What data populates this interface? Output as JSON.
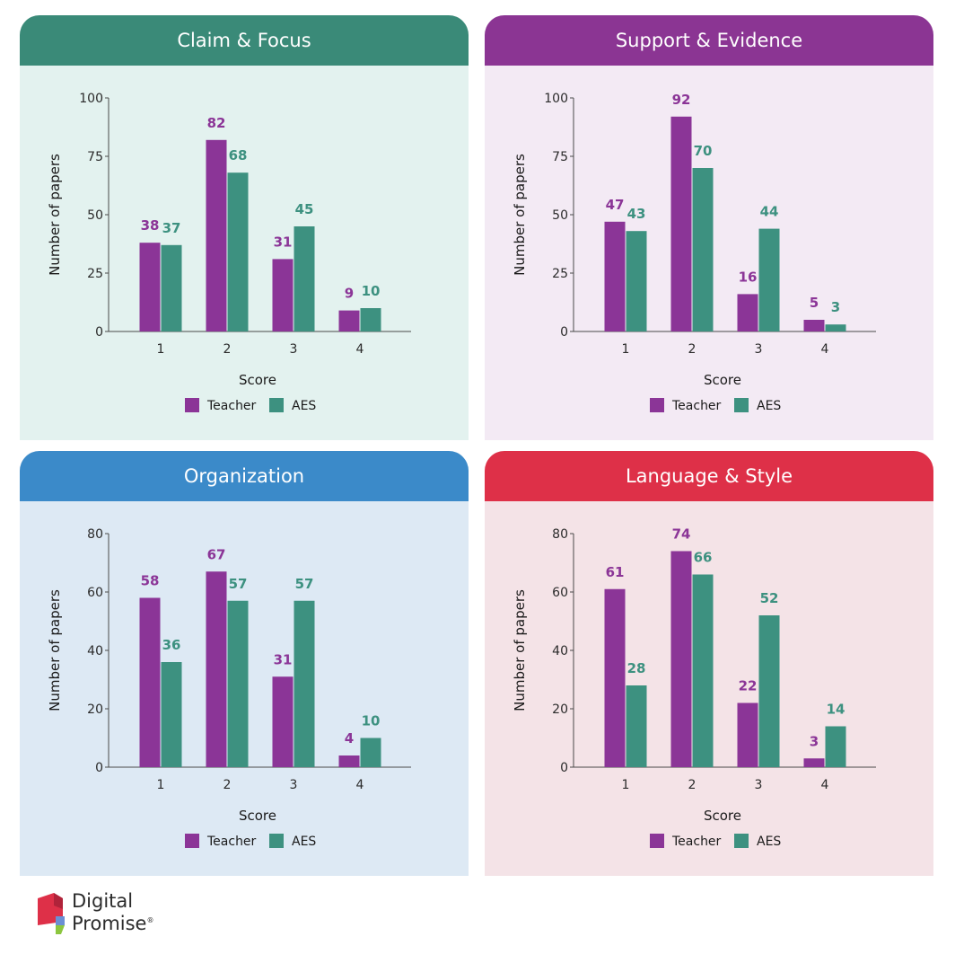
{
  "colors": {
    "teacher": "#8b3597",
    "aes": "#3d9180"
  },
  "chart_data": [
    {
      "type": "bar",
      "title": "Claim & Focus",
      "header_color": "#3a8a78",
      "bg_color": "#e3f2ef",
      "xlabel": "Score",
      "ylabel": "Number of papers",
      "ylim": [
        0,
        100
      ],
      "yticks": [
        0,
        25,
        50,
        75,
        100
      ],
      "categories": [
        "1",
        "2",
        "3",
        "4"
      ],
      "series": [
        {
          "name": "Teacher",
          "values": [
            38,
            82,
            31,
            9
          ]
        },
        {
          "name": "AES",
          "values": [
            37,
            68,
            45,
            10
          ]
        }
      ],
      "legend_placement": "bottom-center",
      "grid": false
    },
    {
      "type": "bar",
      "title": "Support & Evidence",
      "header_color": "#8b3593",
      "bg_color": "#f3eaf4",
      "xlabel": "Score",
      "ylabel": "Number of papers",
      "ylim": [
        0,
        100
      ],
      "yticks": [
        0,
        25,
        50,
        75,
        100
      ],
      "categories": [
        "1",
        "2",
        "3",
        "4"
      ],
      "series": [
        {
          "name": "Teacher",
          "values": [
            47,
            92,
            16,
            5
          ]
        },
        {
          "name": "AES",
          "values": [
            43,
            70,
            44,
            3
          ]
        }
      ],
      "legend_placement": "bottom-center",
      "grid": false
    },
    {
      "type": "bar",
      "title": "Organization",
      "header_color": "#3b8ac9",
      "bg_color": "#dde9f4",
      "xlabel": "Score",
      "ylabel": "Number of papers",
      "ylim": [
        0,
        80
      ],
      "yticks": [
        0,
        20,
        40,
        60,
        80
      ],
      "categories": [
        "1",
        "2",
        "3",
        "4"
      ],
      "series": [
        {
          "name": "Teacher",
          "values": [
            58,
            67,
            31,
            4
          ]
        },
        {
          "name": "AES",
          "values": [
            36,
            57,
            57,
            10
          ]
        }
      ],
      "legend_placement": "bottom-center",
      "grid": false
    },
    {
      "type": "bar",
      "title": "Language & Style",
      "header_color": "#de3048",
      "bg_color": "#f4e3e7",
      "xlabel": "Score",
      "ylabel": "Number of papers",
      "ylim": [
        0,
        80
      ],
      "yticks": [
        0,
        20,
        40,
        60,
        80
      ],
      "categories": [
        "1",
        "2",
        "3",
        "4"
      ],
      "series": [
        {
          "name": "Teacher",
          "values": [
            61,
            74,
            22,
            3
          ]
        },
        {
          "name": "AES",
          "values": [
            28,
            66,
            52,
            14
          ]
        }
      ],
      "legend_placement": "bottom-center",
      "grid": false
    }
  ],
  "logo": {
    "line1": "Digital",
    "line2": "Promise",
    "mark": "®"
  }
}
